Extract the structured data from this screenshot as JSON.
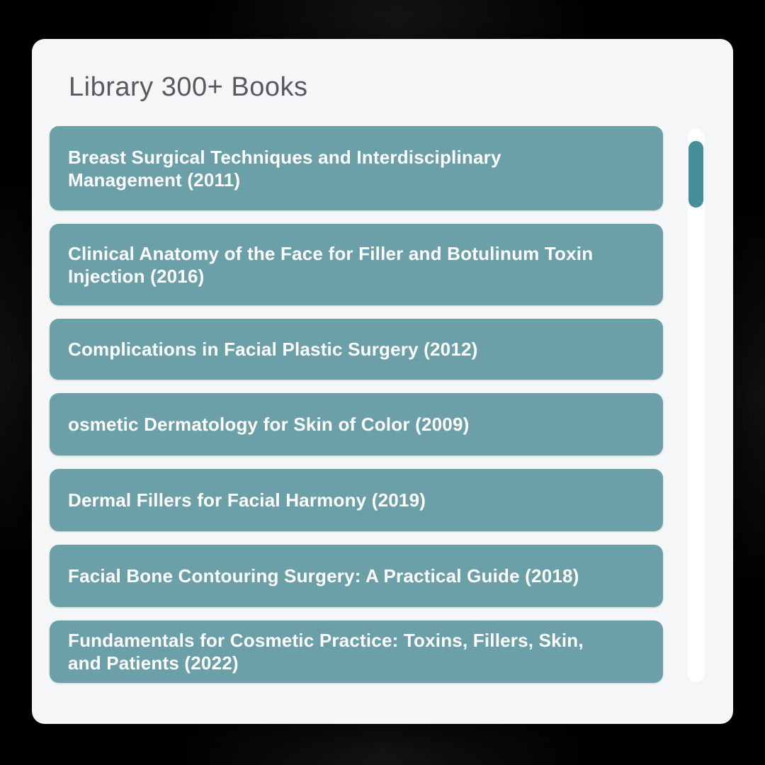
{
  "header": {
    "title": "Library 300+ Books"
  },
  "books": [
    {
      "label": "Breast Surgical Techniques and Interdisciplinary\nManagement (2011)"
    },
    {
      "label": "Clinical Anatomy of the Face for Filler and Botulinum Toxin\nInjection (2016)"
    },
    {
      "label": "Complications in Facial Plastic Surgery (2012)"
    },
    {
      "label": "osmetic Dermatology for Skin of Color (2009)"
    },
    {
      "label": "Dermal Fillers for Facial Harmony (2019)"
    },
    {
      "label": "Facial Bone Contouring Surgery: A Practical Guide (2018)"
    },
    {
      "label": "Fundamentals for Cosmetic Practice: Toxins, Fillers, Skin,\nand Patients (2022)"
    }
  ],
  "scrollbar": {
    "thumb_position": "top"
  },
  "colors": {
    "page_background": "#000000",
    "card_background": "#F4F6F8",
    "title_text": "#58595C",
    "button_background": "#6BA0A9",
    "button_text": "#FFFFFF",
    "scroll_track": "#FFFFFF",
    "scroll_thumb": "#468E9A"
  }
}
